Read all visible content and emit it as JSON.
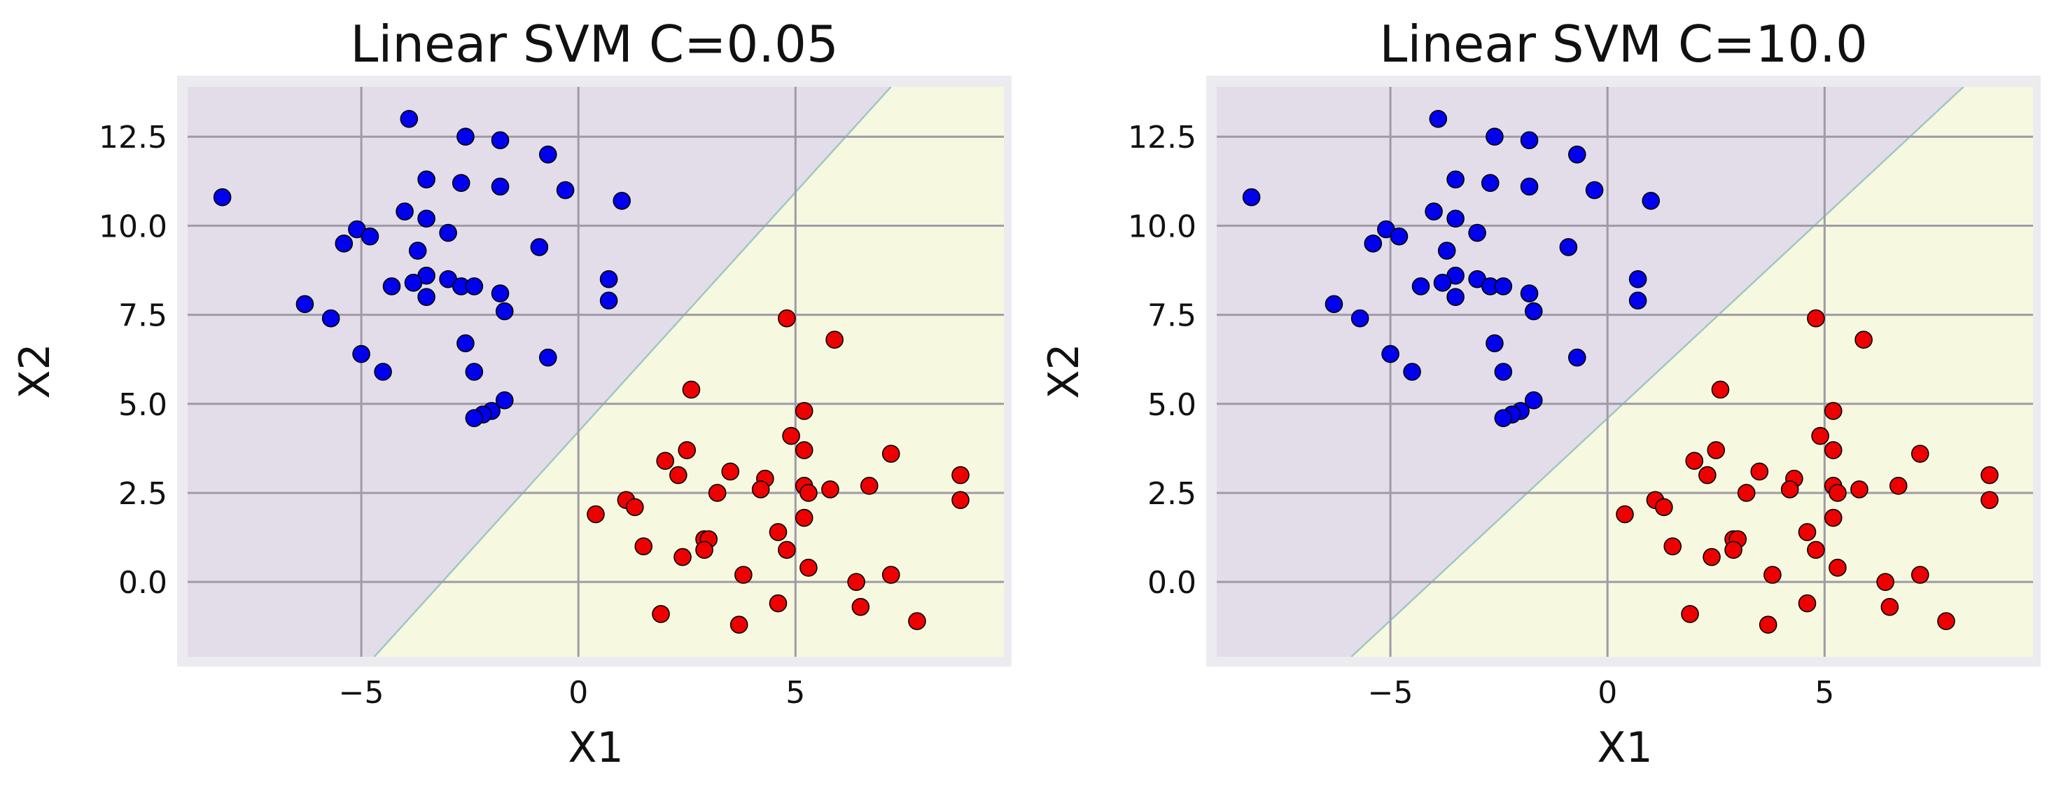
{
  "chart_data": [
    {
      "type": "scatter",
      "title": "Linear SVM C=0.05",
      "xlabel": "X1",
      "ylabel": "X2",
      "xlim": [
        -9.0,
        9.8
      ],
      "ylim": [
        -2.1,
        13.9
      ],
      "xticks": [
        -5,
        0,
        5
      ],
      "xtick_labels": [
        "−5",
        "0",
        "5"
      ],
      "yticks": [
        0.0,
        2.5,
        5.0,
        7.5,
        10.0,
        12.5
      ],
      "ytick_labels": [
        "0.0",
        "2.5",
        "5.0",
        "7.5",
        "10.0",
        "12.5"
      ],
      "grid": true,
      "decision_boundary": {
        "x1": [
          -4.7,
          7.2
        ],
        "x2": [
          -2.1,
          13.9
        ]
      },
      "regions": {
        "upper_left": "#e3dde9",
        "lower_right": "#f6f9df"
      },
      "series": [
        {
          "color": "#0000ee",
          "points": [
            [
              -8.2,
              10.8
            ],
            [
              -3.9,
              13.0
            ],
            [
              -2.6,
              12.5
            ],
            [
              -1.8,
              12.4
            ],
            [
              -0.7,
              12.0
            ],
            [
              -3.5,
              11.3
            ],
            [
              -2.7,
              11.2
            ],
            [
              -1.8,
              11.1
            ],
            [
              -0.3,
              11.0
            ],
            [
              1.0,
              10.7
            ],
            [
              -4.0,
              10.4
            ],
            [
              -3.5,
              10.2
            ],
            [
              -5.1,
              9.9
            ],
            [
              -4.8,
              9.7
            ],
            [
              -5.4,
              9.5
            ],
            [
              -3.0,
              9.8
            ],
            [
              -0.9,
              9.4
            ],
            [
              -3.7,
              9.3
            ],
            [
              -4.3,
              8.3
            ],
            [
              -3.5,
              8.6
            ],
            [
              -3.8,
              8.4
            ],
            [
              -3.0,
              8.5
            ],
            [
              -2.7,
              8.3
            ],
            [
              -2.4,
              8.3
            ],
            [
              -1.8,
              8.1
            ],
            [
              0.7,
              8.5
            ],
            [
              -3.5,
              8.0
            ],
            [
              -1.7,
              7.6
            ],
            [
              0.7,
              7.9
            ],
            [
              -6.3,
              7.8
            ],
            [
              -5.7,
              7.4
            ],
            [
              -2.6,
              6.7
            ],
            [
              -0.7,
              6.3
            ],
            [
              -5.0,
              6.4
            ],
            [
              -4.5,
              5.9
            ],
            [
              -2.4,
              5.9
            ],
            [
              -1.7,
              5.1
            ],
            [
              -2.0,
              4.8
            ],
            [
              -2.2,
              4.7
            ],
            [
              -2.4,
              4.6
            ]
          ]
        },
        {
          "color": "#ee0000",
          "points": [
            [
              4.8,
              7.4
            ],
            [
              5.9,
              6.8
            ],
            [
              2.6,
              5.4
            ],
            [
              5.2,
              4.8
            ],
            [
              4.9,
              4.1
            ],
            [
              2.5,
              3.7
            ],
            [
              5.2,
              3.7
            ],
            [
              7.2,
              3.6
            ],
            [
              2.0,
              3.4
            ],
            [
              3.5,
              3.1
            ],
            [
              2.3,
              3.0
            ],
            [
              8.8,
              3.0
            ],
            [
              4.3,
              2.9
            ],
            [
              4.2,
              2.6
            ],
            [
              5.2,
              2.7
            ],
            [
              5.3,
              2.5
            ],
            [
              5.8,
              2.6
            ],
            [
              6.7,
              2.7
            ],
            [
              3.2,
              2.5
            ],
            [
              1.1,
              2.3
            ],
            [
              8.8,
              2.3
            ],
            [
              1.3,
              2.1
            ],
            [
              0.4,
              1.9
            ],
            [
              5.2,
              1.8
            ],
            [
              4.6,
              1.4
            ],
            [
              2.9,
              1.2
            ],
            [
              3.0,
              1.2
            ],
            [
              1.5,
              1.0
            ],
            [
              2.9,
              0.9
            ],
            [
              4.8,
              0.9
            ],
            [
              2.4,
              0.7
            ],
            [
              5.3,
              0.4
            ],
            [
              3.8,
              0.2
            ],
            [
              7.2,
              0.2
            ],
            [
              6.4,
              0.0
            ],
            [
              4.6,
              -0.6
            ],
            [
              6.5,
              -0.7
            ],
            [
              1.9,
              -0.9
            ],
            [
              7.8,
              -1.1
            ],
            [
              3.7,
              -1.2
            ]
          ]
        }
      ]
    },
    {
      "type": "scatter",
      "title": "Linear SVM C=10.0",
      "xlabel": "X1",
      "ylabel": "X2",
      "xlim": [
        -9.0,
        9.8
      ],
      "ylim": [
        -2.1,
        13.9
      ],
      "xticks": [
        -5,
        0,
        5
      ],
      "xtick_labels": [
        "−5",
        "0",
        "5"
      ],
      "yticks": [
        0.0,
        2.5,
        5.0,
        7.5,
        10.0,
        12.5
      ],
      "ytick_labels": [
        "0.0",
        "2.5",
        "5.0",
        "7.5",
        "10.0",
        "12.5"
      ],
      "grid": true,
      "decision_boundary": {
        "x1": [
          -5.9,
          8.2
        ],
        "x2": [
          -2.1,
          13.9
        ]
      },
      "regions": {
        "upper_left": "#e3dde9",
        "lower_right": "#f6f9df"
      },
      "series": [
        {
          "color": "#0000ee",
          "points": [
            [
              -8.2,
              10.8
            ],
            [
              -3.9,
              13.0
            ],
            [
              -2.6,
              12.5
            ],
            [
              -1.8,
              12.4
            ],
            [
              -0.7,
              12.0
            ],
            [
              -3.5,
              11.3
            ],
            [
              -2.7,
              11.2
            ],
            [
              -1.8,
              11.1
            ],
            [
              -0.3,
              11.0
            ],
            [
              1.0,
              10.7
            ],
            [
              -4.0,
              10.4
            ],
            [
              -3.5,
              10.2
            ],
            [
              -5.1,
              9.9
            ],
            [
              -4.8,
              9.7
            ],
            [
              -5.4,
              9.5
            ],
            [
              -3.0,
              9.8
            ],
            [
              -0.9,
              9.4
            ],
            [
              -3.7,
              9.3
            ],
            [
              -4.3,
              8.3
            ],
            [
              -3.5,
              8.6
            ],
            [
              -3.8,
              8.4
            ],
            [
              -3.0,
              8.5
            ],
            [
              -2.7,
              8.3
            ],
            [
              -2.4,
              8.3
            ],
            [
              -1.8,
              8.1
            ],
            [
              0.7,
              8.5
            ],
            [
              -3.5,
              8.0
            ],
            [
              -1.7,
              7.6
            ],
            [
              0.7,
              7.9
            ],
            [
              -6.3,
              7.8
            ],
            [
              -5.7,
              7.4
            ],
            [
              -2.6,
              6.7
            ],
            [
              -0.7,
              6.3
            ],
            [
              -5.0,
              6.4
            ],
            [
              -4.5,
              5.9
            ],
            [
              -2.4,
              5.9
            ],
            [
              -1.7,
              5.1
            ],
            [
              -2.0,
              4.8
            ],
            [
              -2.2,
              4.7
            ],
            [
              -2.4,
              4.6
            ]
          ]
        },
        {
          "color": "#ee0000",
          "points": [
            [
              4.8,
              7.4
            ],
            [
              5.9,
              6.8
            ],
            [
              2.6,
              5.4
            ],
            [
              5.2,
              4.8
            ],
            [
              4.9,
              4.1
            ],
            [
              2.5,
              3.7
            ],
            [
              5.2,
              3.7
            ],
            [
              7.2,
              3.6
            ],
            [
              2.0,
              3.4
            ],
            [
              3.5,
              3.1
            ],
            [
              2.3,
              3.0
            ],
            [
              8.8,
              3.0
            ],
            [
              4.3,
              2.9
            ],
            [
              4.2,
              2.6
            ],
            [
              5.2,
              2.7
            ],
            [
              5.3,
              2.5
            ],
            [
              5.8,
              2.6
            ],
            [
              6.7,
              2.7
            ],
            [
              3.2,
              2.5
            ],
            [
              1.1,
              2.3
            ],
            [
              8.8,
              2.3
            ],
            [
              1.3,
              2.1
            ],
            [
              0.4,
              1.9
            ],
            [
              5.2,
              1.8
            ],
            [
              4.6,
              1.4
            ],
            [
              2.9,
              1.2
            ],
            [
              3.0,
              1.2
            ],
            [
              1.5,
              1.0
            ],
            [
              2.9,
              0.9
            ],
            [
              4.8,
              0.9
            ],
            [
              2.4,
              0.7
            ],
            [
              5.3,
              0.4
            ],
            [
              3.8,
              0.2
            ],
            [
              7.2,
              0.2
            ],
            [
              6.4,
              0.0
            ],
            [
              4.6,
              -0.6
            ],
            [
              6.5,
              -0.7
            ],
            [
              1.9,
              -0.9
            ],
            [
              7.8,
              -1.1
            ],
            [
              3.7,
              -1.2
            ]
          ]
        }
      ]
    }
  ]
}
